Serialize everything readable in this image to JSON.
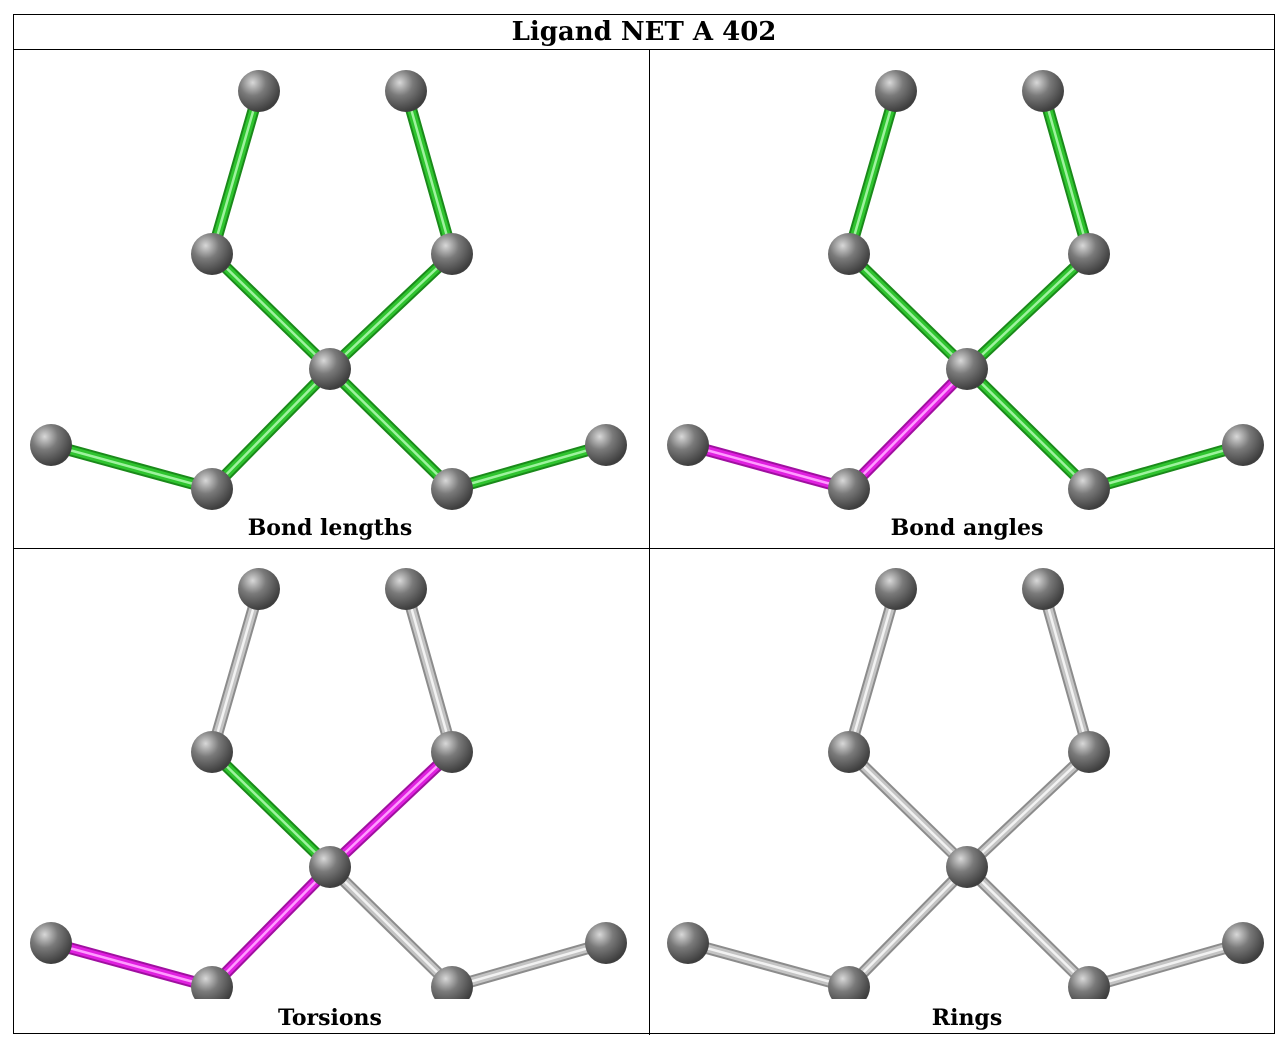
{
  "title": "Ligand NET A 402",
  "colors": {
    "green": "#2db82d",
    "magenta": "#e020e0",
    "gray": "#c0c0c0",
    "atom": "#7a7a7a"
  },
  "panels": [
    {
      "caption": "Bond lengths",
      "bonds": [
        "green",
        "green",
        "green",
        "green",
        "green",
        "green",
        "green",
        "green"
      ]
    },
    {
      "caption": "Bond angles",
      "bonds": [
        "green",
        "green",
        "green",
        "green",
        "magenta",
        "magenta",
        "green",
        "green"
      ]
    },
    {
      "caption": "Torsions",
      "bonds": [
        "gray",
        "gray",
        "green",
        "magenta",
        "magenta",
        "magenta",
        "gray",
        "gray"
      ]
    },
    {
      "caption": "Rings",
      "bonds": [
        "gray",
        "gray",
        "gray",
        "gray",
        "gray",
        "gray",
        "gray",
        "gray"
      ]
    }
  ]
}
